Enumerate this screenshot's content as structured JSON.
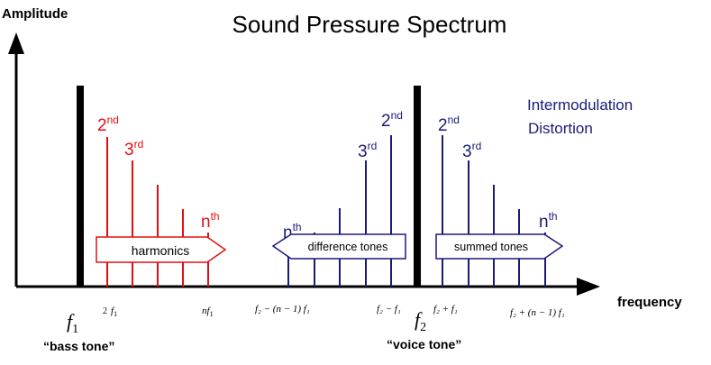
{
  "title": "Sound Pressure Spectrum",
  "axes": {
    "y_label": "Amplitude",
    "x_label": "frequency"
  },
  "annotation": {
    "line1": "Intermodulation",
    "line2": "Distortion"
  },
  "colors": {
    "harmonics": "#e01010",
    "intermod": "#1a1a7a",
    "axis": "#000000"
  },
  "fundamentals": {
    "f1": {
      "symbol": "f",
      "sub": "1",
      "caption": "“bass tone”"
    },
    "f2": {
      "symbol": "f",
      "sub": "2",
      "caption": "“voice tone”"
    }
  },
  "groups": {
    "harmonics": {
      "label": "harmonics",
      "order_labels": [
        {
          "base": "2",
          "sup": "nd"
        },
        {
          "base": "3",
          "sup": "rd"
        },
        {
          "base": "n",
          "sup": "th"
        }
      ],
      "freq_labels": [
        {
          "prefix": "2",
          "var": "f",
          "sub": "1"
        },
        {
          "prefix": "n",
          "var": "f",
          "sub": "1"
        }
      ]
    },
    "difference": {
      "label": "difference tones",
      "order_labels": [
        {
          "base": "n",
          "sup": "th"
        },
        {
          "base": "3",
          "sup": "rd"
        },
        {
          "base": "2",
          "sup": "nd"
        }
      ],
      "freq_labels": [
        "f₂ − (n − 1) f₁",
        "f₂ − f₁"
      ]
    },
    "summed": {
      "label": "summed tones",
      "order_labels": [
        {
          "base": "2",
          "sup": "nd"
        },
        {
          "base": "3",
          "sup": "rd"
        },
        {
          "base": "n",
          "sup": "th"
        }
      ],
      "freq_labels": [
        "f₂ + f₁",
        "f₂ + (n − 1) f₁"
      ]
    }
  }
}
